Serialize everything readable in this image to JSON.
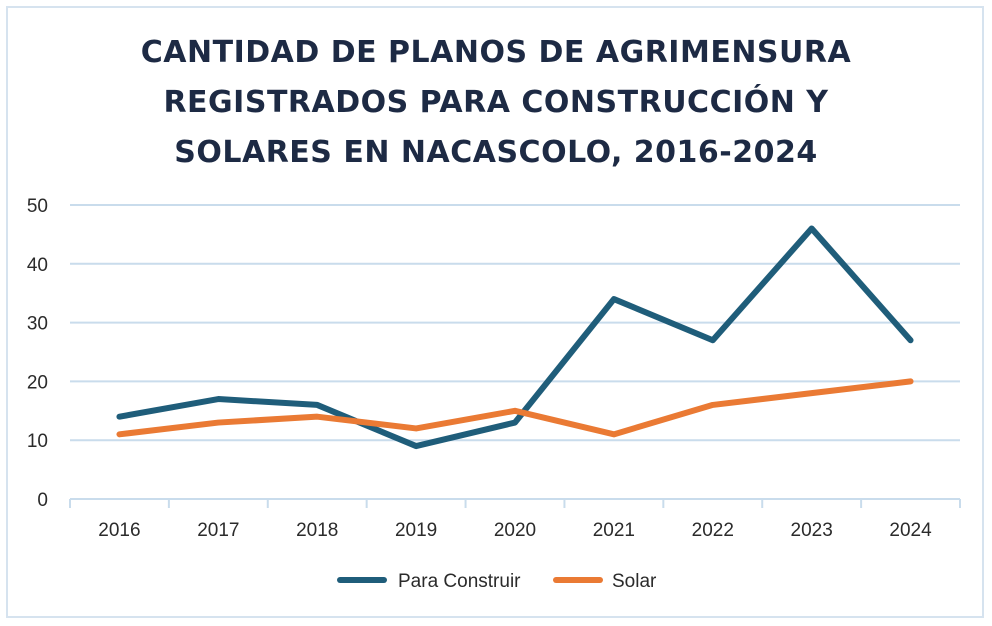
{
  "chart_data": {
    "type": "line",
    "title_lines": [
      "CANTIDAD DE PLANOS DE AGRIMENSURA",
      "REGISTRADOS PARA CONSTRUCCIÓN Y",
      "SOLARES EN NACASCOLO, 2016-2024"
    ],
    "categories": [
      "2016",
      "2017",
      "2018",
      "2019",
      "2020",
      "2021",
      "2022",
      "2023",
      "2024"
    ],
    "series": [
      {
        "name": "Para Construir",
        "color": "#1f5d7a",
        "values": [
          14,
          17,
          16,
          9,
          13,
          34,
          27,
          46,
          27
        ]
      },
      {
        "name": "Solar",
        "color": "#ea7a34",
        "values": [
          11,
          13,
          14,
          12,
          15,
          11,
          16,
          18,
          20
        ]
      }
    ],
    "yticks": [
      "0",
      "10",
      "20",
      "30",
      "40",
      "50"
    ],
    "ylim": [
      0,
      50
    ],
    "grid": true,
    "legend_position": "bottom",
    "gridline_color": "#c9dcec"
  }
}
